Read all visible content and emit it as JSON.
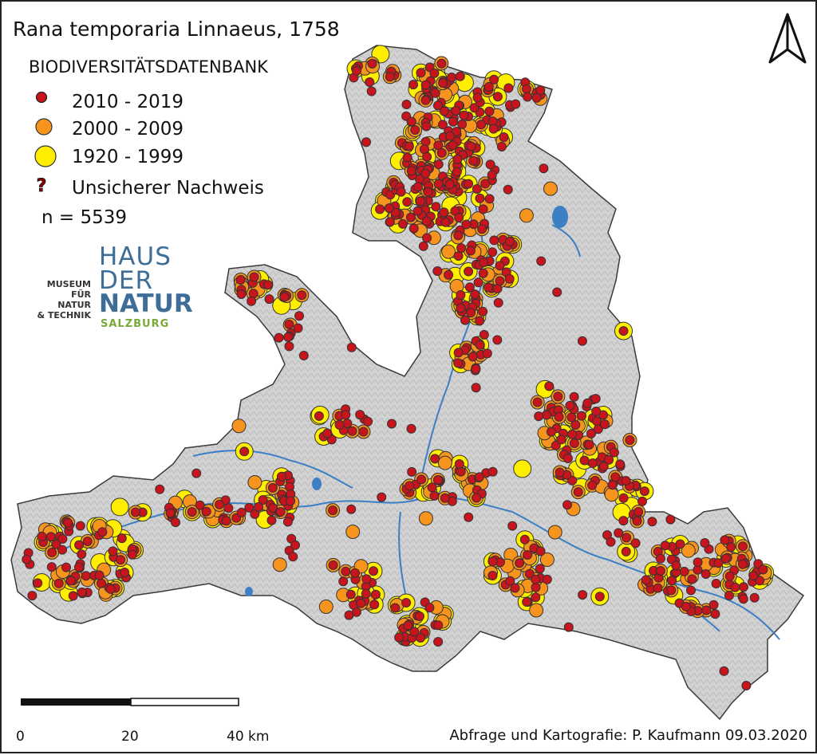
{
  "map": {
    "title": "Rana temporaria Linnaeus, 1758",
    "subtitle": "BIODIVERSITÄTSDATENBANK",
    "legend": [
      {
        "label": "2010 - 2019",
        "symbol": "small-red-dot",
        "color": "#c8141c"
      },
      {
        "label": "2000 - 2009",
        "symbol": "medium-orange-dot",
        "color": "#f7941d"
      },
      {
        "label": "1920 - 1999",
        "symbol": "large-yellow-dot",
        "color": "#ffee00"
      },
      {
        "label": "Unsicherer Nachweis",
        "symbol": "question-mark-icon",
        "color": "#8b0000"
      }
    ],
    "count_text": "n = 5539",
    "scale_labels": [
      "0",
      "20",
      "40 km"
    ],
    "credit": "Abfrage und Kartografie: P. Kaufmann 09.03.2020",
    "logo": {
      "museum_line1": "MUSEUM",
      "museum_line2": "FÜR NATUR",
      "museum_line3": "& TECHNIK",
      "haus": "HAUS",
      "der": "DER",
      "natur": "NATUR",
      "salzburg": "SALZBURG"
    },
    "colors": {
      "land": "#cfcfcf",
      "water": "#3d7fc4",
      "outline": "#3a3a3a"
    }
  }
}
